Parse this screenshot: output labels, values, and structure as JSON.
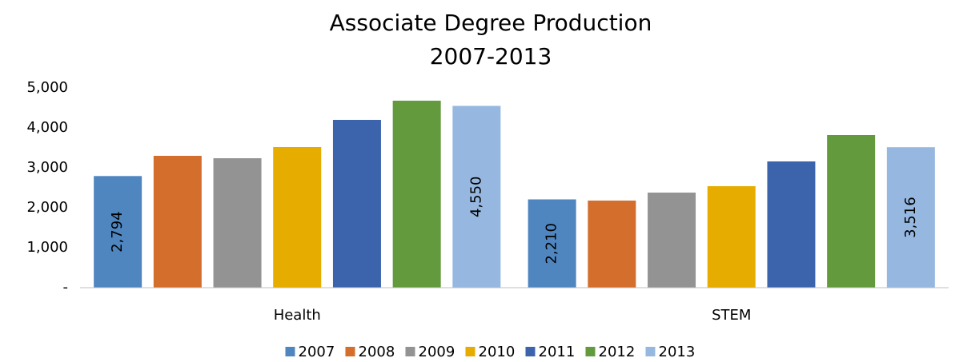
{
  "chart_data": {
    "type": "bar",
    "title": "Associate Degree Production",
    "subtitle": "2007-2013",
    "categories": [
      "Health",
      "STEM"
    ],
    "series": [
      {
        "name": "2007",
        "color": "#4f86c0",
        "values": [
          2794,
          2210
        ],
        "value_labels": [
          "2,794",
          "2,210"
        ]
      },
      {
        "name": "2008",
        "color": "#d36e2c",
        "values": [
          3300,
          2180
        ]
      },
      {
        "name": "2009",
        "color": "#939393",
        "values": [
          3240,
          2380
        ]
      },
      {
        "name": "2010",
        "color": "#e6ac00",
        "values": [
          3520,
          2540
        ]
      },
      {
        "name": "2011",
        "color": "#3c64ac",
        "values": [
          4200,
          3160
        ]
      },
      {
        "name": "2012",
        "color": "#629a3d",
        "values": [
          4680,
          3820
        ]
      },
      {
        "name": "2013",
        "color": "#96b8e0",
        "values": [
          4550,
          3516
        ],
        "value_labels": [
          "4,550",
          "3,516"
        ]
      }
    ],
    "ylim": [
      0,
      5000
    ],
    "yticks": [
      {
        "value": 0,
        "label": "-"
      },
      {
        "value": 1000,
        "label": "1,000"
      },
      {
        "value": 2000,
        "label": "2,000"
      },
      {
        "value": 3000,
        "label": "3,000"
      },
      {
        "value": 4000,
        "label": "4,000"
      },
      {
        "value": 5000,
        "label": "5,000"
      }
    ],
    "legend": "bottom"
  }
}
